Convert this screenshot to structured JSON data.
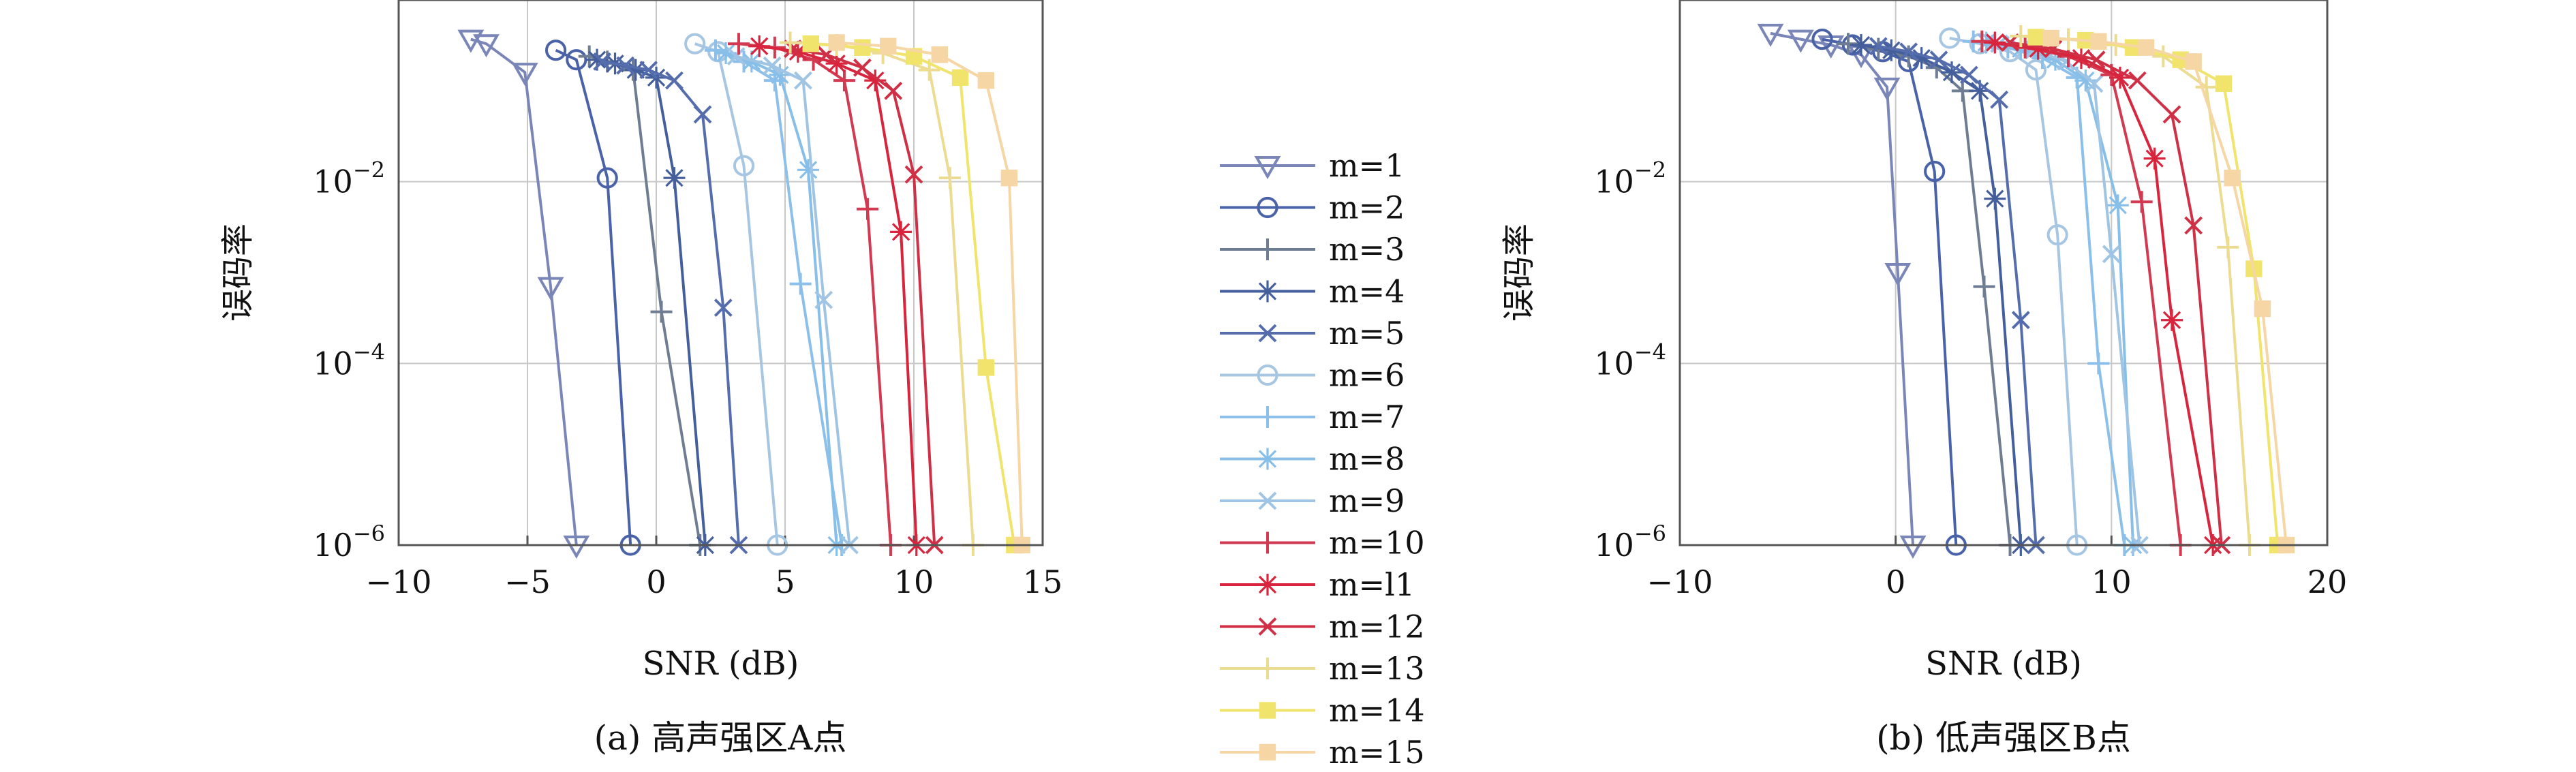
{
  "colors": {
    "m1": "#7b86b8",
    "m2": "#4a63a8",
    "m3": "#6f7d92",
    "m4": "#455f9d",
    "m5": "#556dad",
    "m6": "#a7c6e2",
    "m7": "#8cc0ea",
    "m8": "#88bfe8",
    "m9": "#9fc4e4",
    "m10": "#d23a52",
    "m11": "#d8243c",
    "m12": "#cf3046",
    "m13": "#ecdc92",
    "m14": "#f1e46c",
    "m15": "#f5d6a4",
    "grid": "#c8c8c8",
    "frame": "#555555"
  },
  "legend": [
    {
      "label": "m=1",
      "marker": "triangle-down"
    },
    {
      "label": "m=2",
      "marker": "circle"
    },
    {
      "label": "m=3",
      "marker": "plus"
    },
    {
      "label": "m=4",
      "marker": "asterisk"
    },
    {
      "label": "m=5",
      "marker": "x"
    },
    {
      "label": "m=6",
      "marker": "circle"
    },
    {
      "label": "m=7",
      "marker": "plus"
    },
    {
      "label": "m=8",
      "marker": "asterisk"
    },
    {
      "label": "m=9",
      "marker": "x"
    },
    {
      "label": "m=10",
      "marker": "plus"
    },
    {
      "label": "m=l1",
      "marker": "asterisk"
    },
    {
      "label": "m=12",
      "marker": "x"
    },
    {
      "label": "m=13",
      "marker": "plus"
    },
    {
      "label": "m=14",
      "marker": "square"
    },
    {
      "label": "m=15",
      "marker": "square"
    }
  ],
  "chart_data": [
    {
      "type": "line",
      "caption": "(a) 高声强区A点",
      "xlabel": "SNR (dB)",
      "ylabel": "误码率",
      "xlim": [
        -10,
        15
      ],
      "xticks": [
        "−10",
        "−5",
        "0",
        "5",
        "10",
        "15"
      ],
      "yscale": "log",
      "ylim": [
        1e-06,
        1
      ],
      "yticks": [
        {
          "base": "10",
          "exp": "−2"
        },
        {
          "base": "10",
          "exp": "−4"
        },
        {
          "base": "10",
          "exp": "−6"
        }
      ],
      "grid": true,
      "series": [
        {
          "name": "m=1",
          "points": [
            [
              -7.2,
              0.37
            ],
            [
              -6.6,
              0.33
            ],
            [
              -5.1,
              0.16
            ],
            [
              -4.1,
              0.0007
            ],
            [
              -3.1,
              1e-06
            ]
          ]
        },
        {
          "name": "m=2",
          "points": [
            [
              -3.9,
              0.28
            ],
            [
              -3.1,
              0.22
            ],
            [
              -1.9,
              0.011
            ],
            [
              -1.0,
              1e-06
            ]
          ]
        },
        {
          "name": "m=3",
          "points": [
            [
              -2.6,
              0.24
            ],
            [
              -1.9,
              0.21
            ],
            [
              -0.9,
              0.17
            ],
            [
              0.2,
              0.00037
            ],
            [
              1.7,
              1e-06
            ]
          ]
        },
        {
          "name": "m=4",
          "points": [
            [
              -2.3,
              0.22
            ],
            [
              -1.6,
              0.2
            ],
            [
              -0.8,
              0.17
            ],
            [
              0,
              0.14
            ],
            [
              0.7,
              0.011
            ],
            [
              1.9,
              1e-06
            ]
          ]
        },
        {
          "name": "m=5",
          "points": [
            [
              -2.1,
              0.21
            ],
            [
              -1.2,
              0.19
            ],
            [
              -0.3,
              0.17
            ],
            [
              0.7,
              0.13
            ],
            [
              1.8,
              0.055
            ],
            [
              2.6,
              0.00041
            ],
            [
              3.2,
              1e-06
            ]
          ]
        },
        {
          "name": "m=6",
          "points": [
            [
              1.5,
              0.33
            ],
            [
              2.4,
              0.27
            ],
            [
              3.4,
              0.015
            ],
            [
              4.7,
              1e-06
            ]
          ]
        },
        {
          "name": "m=7",
          "points": [
            [
              2.3,
              0.28
            ],
            [
              3.4,
              0.21
            ],
            [
              4.6,
              0.13
            ],
            [
              5.6,
              0.00075
            ],
            [
              7.2,
              1e-06
            ]
          ]
        },
        {
          "name": "m=8",
          "points": [
            [
              2.7,
              0.26
            ],
            [
              3.7,
              0.21
            ],
            [
              4.8,
              0.15
            ],
            [
              5.9,
              0.0135
            ],
            [
              7.0,
              1e-06
            ]
          ]
        },
        {
          "name": "m=9",
          "points": [
            [
              3.1,
              0.24
            ],
            [
              4.5,
              0.19
            ],
            [
              5.7,
              0.13
            ],
            [
              6.5,
              0.0005
            ],
            [
              7.5,
              1e-06
            ]
          ]
        },
        {
          "name": "m=10",
          "points": [
            [
              3.2,
              0.33
            ],
            [
              4.6,
              0.3
            ],
            [
              6.1,
              0.22
            ],
            [
              7.3,
              0.13
            ],
            [
              8.2,
              0.005
            ],
            [
              9.1,
              1e-06
            ]
          ]
        },
        {
          "name": "m=l1",
          "points": [
            [
              4.0,
              0.31
            ],
            [
              5.5,
              0.27
            ],
            [
              7.0,
              0.2
            ],
            [
              8.5,
              0.13
            ],
            [
              9.5,
              0.0028
            ],
            [
              10.1,
              1e-06
            ]
          ]
        },
        {
          "name": "m=12",
          "points": [
            [
              5.3,
              0.29
            ],
            [
              6.6,
              0.25
            ],
            [
              8.0,
              0.18
            ],
            [
              9.2,
              0.1
            ],
            [
              10.0,
              0.012
            ],
            [
              10.8,
              1e-06
            ]
          ]
        },
        {
          "name": "m=13",
          "points": [
            [
              5.2,
              0.34
            ],
            [
              7.0,
              0.32
            ],
            [
              8.8,
              0.26
            ],
            [
              10.6,
              0.17
            ],
            [
              11.4,
              0.011
            ],
            [
              12.3,
              1e-06
            ]
          ]
        },
        {
          "name": "m=14",
          "points": [
            [
              6.0,
              0.33
            ],
            [
              8.0,
              0.3
            ],
            [
              10.0,
              0.24
            ],
            [
              11.8,
              0.14
            ],
            [
              12.8,
              9e-05
            ],
            [
              13.9,
              1e-06
            ]
          ]
        },
        {
          "name": "m=15",
          "points": [
            [
              7.0,
              0.34
            ],
            [
              9.0,
              0.31
            ],
            [
              11.0,
              0.25
            ],
            [
              12.8,
              0.13
            ],
            [
              13.7,
              0.011
            ],
            [
              14.2,
              1e-06
            ]
          ]
        }
      ]
    },
    {
      "type": "line",
      "caption": "(b) 低声强区B点",
      "xlabel": "SNR (dB)",
      "ylabel": "误码率",
      "xlim": [
        -10,
        20
      ],
      "xticks": [
        "−10",
        "0",
        "10",
        "20"
      ],
      "yscale": "log",
      "ylim": [
        1e-06,
        1
      ],
      "yticks": [
        {
          "base": "10",
          "exp": "−2"
        },
        {
          "base": "10",
          "exp": "−4"
        },
        {
          "base": "10",
          "exp": "−6"
        }
      ],
      "grid": true,
      "series": [
        {
          "name": "m=1",
          "points": [
            [
              -5.8,
              0.43
            ],
            [
              -4.4,
              0.37
            ],
            [
              -3.0,
              0.32
            ],
            [
              -1.6,
              0.25
            ],
            [
              -0.4,
              0.11
            ],
            [
              0.1,
              0.001
            ],
            [
              0.8,
              1e-06
            ]
          ]
        },
        {
          "name": "m=2",
          "points": [
            [
              -3.4,
              0.37
            ],
            [
              -2.0,
              0.32
            ],
            [
              -0.6,
              0.27
            ],
            [
              0.6,
              0.21
            ],
            [
              1.8,
              0.013
            ],
            [
              2.8,
              1e-06
            ]
          ]
        },
        {
          "name": "m=3",
          "points": [
            [
              -2.2,
              0.33
            ],
            [
              -0.8,
              0.29
            ],
            [
              0.6,
              0.24
            ],
            [
              1.9,
              0.18
            ],
            [
              3.1,
              0.1
            ],
            [
              4.1,
              0.0007
            ],
            [
              5.3,
              1e-06
            ]
          ]
        },
        {
          "name": "m=4",
          "points": [
            [
              -1.6,
              0.32
            ],
            [
              -0.2,
              0.28
            ],
            [
              1.2,
              0.23
            ],
            [
              2.6,
              0.16
            ],
            [
              3.9,
              0.1
            ],
            [
              4.6,
              0.0065
            ],
            [
              5.8,
              1e-06
            ]
          ]
        },
        {
          "name": "m=5",
          "points": [
            [
              -0.8,
              0.31
            ],
            [
              0.6,
              0.27
            ],
            [
              2.0,
              0.22
            ],
            [
              3.4,
              0.15
            ],
            [
              4.8,
              0.08
            ],
            [
              5.8,
              0.0003
            ],
            [
              6.5,
              1e-06
            ]
          ]
        },
        {
          "name": "m=6",
          "points": [
            [
              2.5,
              0.38
            ],
            [
              3.9,
              0.33
            ],
            [
              5.3,
              0.27
            ],
            [
              6.5,
              0.17
            ],
            [
              7.5,
              0.0026
            ],
            [
              8.4,
              1e-06
            ]
          ]
        },
        {
          "name": "m=7",
          "points": [
            [
              3.6,
              0.35
            ],
            [
              5.2,
              0.3
            ],
            [
              6.8,
              0.23
            ],
            [
              8.4,
              0.14
            ],
            [
              9.4,
              0.0001
            ],
            [
              10.6,
              1e-06
            ]
          ]
        },
        {
          "name": "m=8",
          "points": [
            [
              4.2,
              0.34
            ],
            [
              5.8,
              0.29
            ],
            [
              7.4,
              0.22
            ],
            [
              8.8,
              0.13
            ],
            [
              10.3,
              0.0055
            ],
            [
              11.0,
              1e-06
            ]
          ]
        },
        {
          "name": "m=9",
          "points": [
            [
              4.8,
              0.33
            ],
            [
              6.4,
              0.28
            ],
            [
              7.9,
              0.21
            ],
            [
              9.2,
              0.12
            ],
            [
              10.0,
              0.0016
            ],
            [
              11.3,
              1e-06
            ]
          ]
        },
        {
          "name": "m=10",
          "points": [
            [
              4.0,
              0.35
            ],
            [
              6.0,
              0.3
            ],
            [
              8.0,
              0.24
            ],
            [
              10.0,
              0.15
            ],
            [
              11.4,
              0.006
            ],
            [
              13.2,
              1e-06
            ]
          ]
        },
        {
          "name": "m=l1",
          "points": [
            [
              4.6,
              0.34
            ],
            [
              6.6,
              0.29
            ],
            [
              8.6,
              0.23
            ],
            [
              10.4,
              0.14
            ],
            [
              12.0,
              0.018
            ],
            [
              12.8,
              0.0003
            ],
            [
              14.7,
              1e-06
            ]
          ]
        },
        {
          "name": "m=12",
          "points": [
            [
              5.3,
              0.34
            ],
            [
              7.3,
              0.29
            ],
            [
              9.3,
              0.22
            ],
            [
              11.2,
              0.13
            ],
            [
              12.8,
              0.055
            ],
            [
              13.8,
              0.0033
            ],
            [
              15.1,
              1e-06
            ]
          ]
        },
        {
          "name": "m=13",
          "points": [
            [
              5.8,
              0.4
            ],
            [
              8.0,
              0.37
            ],
            [
              10.2,
              0.32
            ],
            [
              12.4,
              0.24
            ],
            [
              14.4,
              0.11
            ],
            [
              15.4,
              0.0019
            ],
            [
              16.4,
              1e-06
            ]
          ]
        },
        {
          "name": "m=14",
          "points": [
            [
              6.5,
              0.39
            ],
            [
              8.8,
              0.36
            ],
            [
              11.0,
              0.3
            ],
            [
              13.2,
              0.22
            ],
            [
              15.2,
              0.12
            ],
            [
              16.6,
              0.0011
            ],
            [
              17.7,
              1e-06
            ]
          ]
        },
        {
          "name": "m=15",
          "points": [
            [
              7.2,
              0.38
            ],
            [
              9.4,
              0.35
            ],
            [
              11.6,
              0.3
            ],
            [
              13.8,
              0.21
            ],
            [
              15.6,
              0.011
            ],
            [
              17.0,
              0.0004
            ],
            [
              18.1,
              1e-06
            ]
          ]
        }
      ]
    }
  ]
}
